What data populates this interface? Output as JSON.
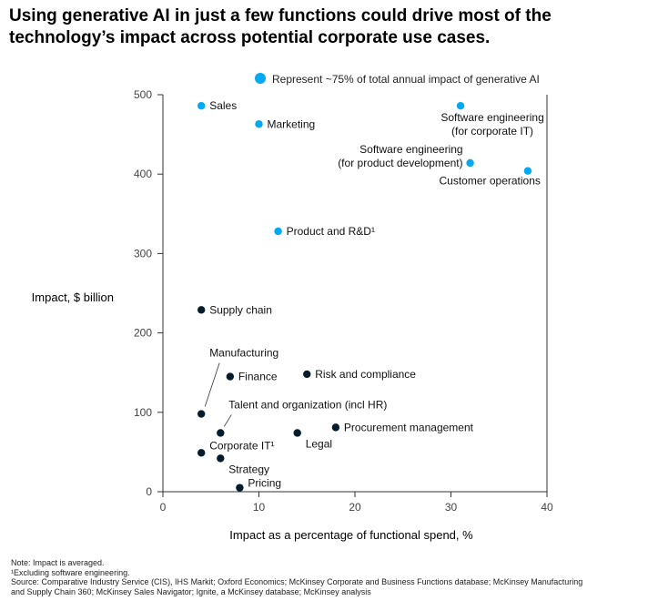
{
  "title": "Using generative AI in just a few functions could drive most of the technology’s impact across potential corporate use cases.",
  "legend": {
    "label": "Represent ~75% of total annual impact of generative AI",
    "color": "#00A9F4"
  },
  "colors": {
    "highlight": "#00A9F4",
    "default": "#051C2C"
  },
  "chart_data": {
    "type": "scatter",
    "xlabel": "Impact as a percentage of functional spend, %",
    "ylabel": "Impact, $ billion",
    "xlim": [
      0,
      40
    ],
    "ylim": [
      0,
      500
    ],
    "xticks": [
      "0",
      "10",
      "20",
      "30",
      "40"
    ],
    "yticks": [
      "0",
      "100",
      "200",
      "300",
      "400",
      "500"
    ],
    "grid": false,
    "points": [
      {
        "label": "Sales",
        "x": 4,
        "y": 486,
        "highlight": true
      },
      {
        "label": "Marketing",
        "x": 10,
        "y": 463,
        "highlight": true
      },
      {
        "label": "Software engineering\n(for corporate IT)",
        "x": 31,
        "y": 486,
        "highlight": true
      },
      {
        "label": "Software engineering\n(for product development)",
        "x": 32,
        "y": 414,
        "highlight": true
      },
      {
        "label": "Customer operations",
        "x": 38,
        "y": 404,
        "highlight": true
      },
      {
        "label": "Product and R&D¹",
        "x": 12,
        "y": 328,
        "highlight": true
      },
      {
        "label": "Supply chain",
        "x": 4,
        "y": 229,
        "highlight": false
      },
      {
        "label": "Manufacturing",
        "x": 4,
        "y": 98,
        "highlight": false
      },
      {
        "label": "Finance",
        "x": 7,
        "y": 145,
        "highlight": false
      },
      {
        "label": "Risk and compliance",
        "x": 15,
        "y": 148,
        "highlight": false
      },
      {
        "label": "Talent and organization (incl HR)",
        "x": 6,
        "y": 74,
        "highlight": false
      },
      {
        "label": "Procurement management",
        "x": 18,
        "y": 81,
        "highlight": false
      },
      {
        "label": "Legal",
        "x": 14,
        "y": 74,
        "highlight": false
      },
      {
        "label": "Corporate IT¹",
        "x": 4,
        "y": 49,
        "highlight": false
      },
      {
        "label": "Strategy",
        "x": 6,
        "y": 42,
        "highlight": false
      },
      {
        "label": "Pricing",
        "x": 8,
        "y": 5,
        "highlight": false
      }
    ]
  },
  "footnotes": [
    "Note: Impact is averaged.",
    "¹Excluding software engineering.",
    "Source: Comparative Industry Service (CIS), IHS Markit; Oxford Economics; McKinsey Corporate and Business Functions database; McKinsey Manufacturing\nand Supply Chain 360; McKinsey Sales Navigator; Ignite, a McKinsey database; McKinsey analysis"
  ]
}
